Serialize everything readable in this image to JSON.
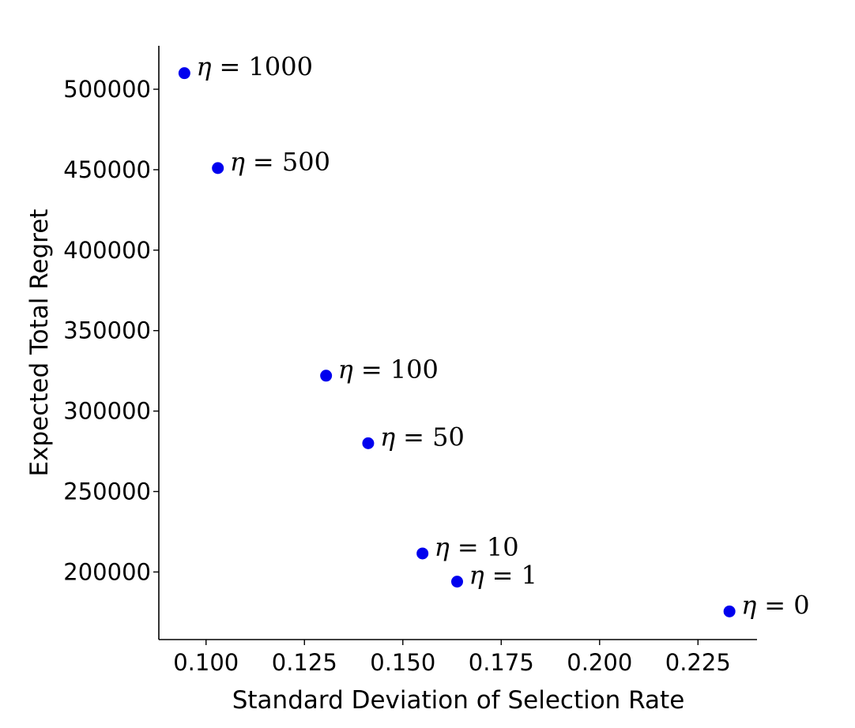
{
  "chart_data": {
    "type": "scatter",
    "title": "",
    "xlabel": "Standard Deviation of Selection Rate",
    "ylabel": "Expected Total Regret",
    "xlim": [
      0.088,
      0.24
    ],
    "ylim": [
      158000,
      527000
    ],
    "xticks": [
      0.1,
      0.125,
      0.15,
      0.175,
      0.2,
      0.225
    ],
    "xtick_labels": [
      "0.100",
      "0.125",
      "0.150",
      "0.175",
      "0.200",
      "0.225"
    ],
    "yticks": [
      200000,
      250000,
      300000,
      350000,
      400000,
      450000,
      500000
    ],
    "ytick_labels": [
      "200000",
      "250000",
      "300000",
      "350000",
      "400000",
      "450000",
      "500000"
    ],
    "grid": false,
    "color": "#0000ee",
    "points": [
      {
        "x": 0.0945,
        "y": 510000,
        "eta": "η",
        "label": "= 1000"
      },
      {
        "x": 0.103,
        "y": 451000,
        "eta": "η",
        "label": "= 500"
      },
      {
        "x": 0.1305,
        "y": 322000,
        "eta": "η",
        "label": "= 100"
      },
      {
        "x": 0.1412,
        "y": 280000,
        "eta": "η",
        "label": "= 50"
      },
      {
        "x": 0.155,
        "y": 211500,
        "eta": "η",
        "label": "= 10"
      },
      {
        "x": 0.1638,
        "y": 194000,
        "eta": "η",
        "label": "= 1"
      },
      {
        "x": 0.233,
        "y": 175500,
        "eta": "η",
        "label": "= 0"
      }
    ]
  }
}
